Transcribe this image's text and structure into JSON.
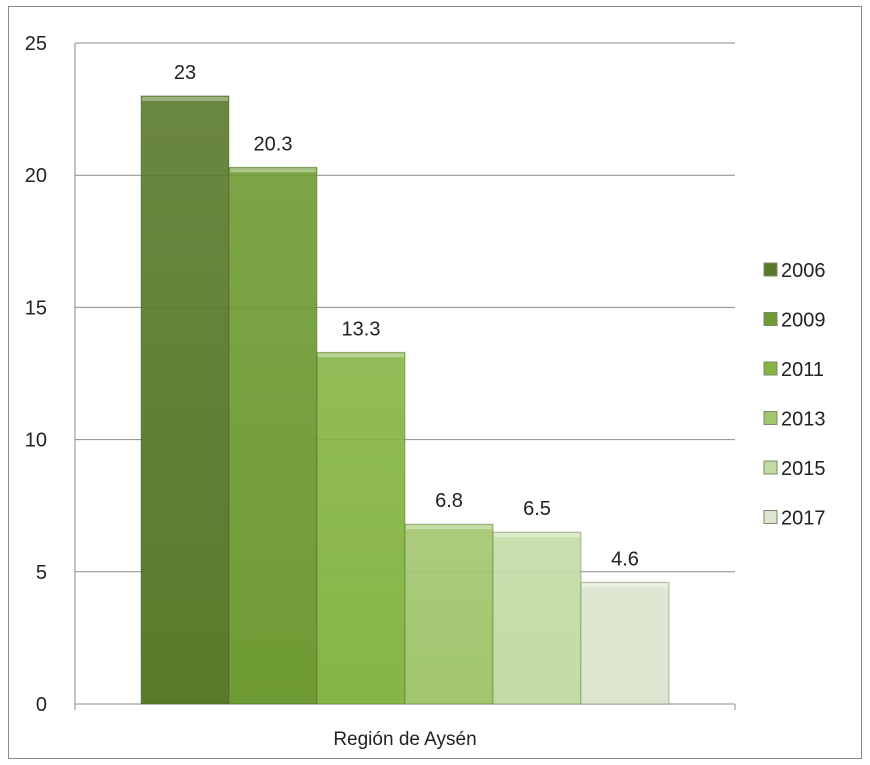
{
  "chart_data": {
    "type": "bar",
    "categories": [
      "Región de Aysén"
    ],
    "series": [
      {
        "name": "2006",
        "values": [
          23
        ],
        "color": "#5a7a2b"
      },
      {
        "name": "2009",
        "values": [
          20.3
        ],
        "color": "#6f9b34"
      },
      {
        "name": "2011",
        "values": [
          13.3
        ],
        "color": "#86b545"
      },
      {
        "name": "2013",
        "values": [
          6.8
        ],
        "color": "#a1c66e"
      },
      {
        "name": "2015",
        "values": [
          6.5
        ],
        "color": "#c3dba5"
      },
      {
        "name": "2017",
        "values": [
          4.6
        ],
        "color": "#dce5cf"
      }
    ],
    "data_labels": [
      "23",
      "20.3",
      "13.3",
      "6.8",
      "6.5",
      "4.6"
    ],
    "y_ticks": [
      "0",
      "5",
      "10",
      "15",
      "20",
      "25"
    ],
    "ylim": [
      0,
      25
    ],
    "grid": true,
    "legend": "right",
    "title": "",
    "xlabel": "",
    "ylabel": ""
  }
}
